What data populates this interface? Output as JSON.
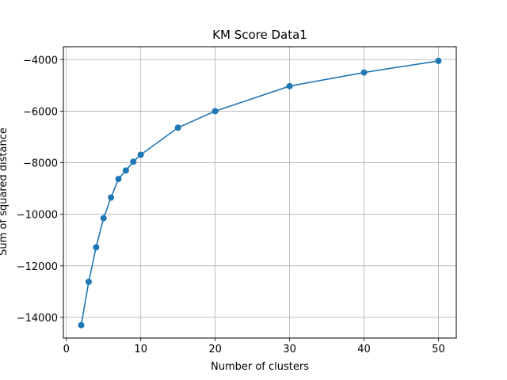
{
  "chart_data": {
    "type": "line",
    "title": "KM Score Data1",
    "xlabel": "Number of clusters",
    "ylabel": "Sum of squared distance",
    "xlim": [
      -0.4,
      52.4
    ],
    "ylim": [
      -14800,
      -3500
    ],
    "xticks": [
      0,
      10,
      20,
      30,
      40,
      50
    ],
    "yticks": [
      -14000,
      -12000,
      -10000,
      -8000,
      -6000,
      -4000
    ],
    "xtick_labels": [
      "0",
      "10",
      "20",
      "30",
      "40",
      "50"
    ],
    "ytick_labels": [
      "−14000",
      "−12000",
      "−10000",
      "−8000",
      "−6000",
      "−4000"
    ],
    "grid": true,
    "marker": "circle",
    "series": [
      {
        "color": "#1f77b4",
        "x": [
          2,
          3,
          4,
          5,
          6,
          7,
          8,
          9,
          10,
          15,
          20,
          30,
          40,
          50
        ],
        "y": [
          -14300,
          -12620,
          -11280,
          -10150,
          -9350,
          -8630,
          -8300,
          -7960,
          -7690,
          -6640,
          -6000,
          -5030,
          -4500,
          -4050
        ]
      }
    ]
  }
}
